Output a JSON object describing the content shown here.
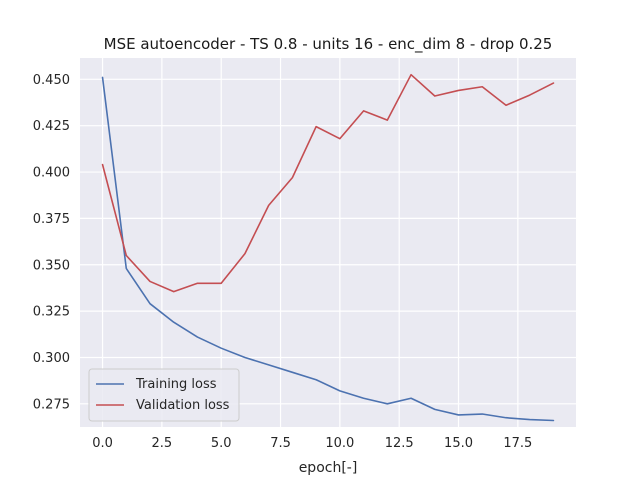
{
  "chart_data": {
    "type": "line",
    "title": "MSE autoencoder - TS 0.8 - units 16 - enc_dim 8 - drop 0.25",
    "xlabel": "epoch[-]",
    "ylabel": "",
    "xlim": [
      -0.95,
      19.95
    ],
    "ylim": [
      0.2625,
      0.4615
    ],
    "xticks": [
      0.0,
      2.5,
      5.0,
      7.5,
      10.0,
      12.5,
      15.0,
      17.5
    ],
    "xtick_labels": [
      "0.0",
      "2.5",
      "5.0",
      "7.5",
      "10.0",
      "12.5",
      "15.0",
      "17.5"
    ],
    "yticks": [
      0.275,
      0.3,
      0.325,
      0.35,
      0.375,
      0.4,
      0.425,
      0.45
    ],
    "ytick_labels": [
      "0.275",
      "0.300",
      "0.325",
      "0.350",
      "0.375",
      "0.400",
      "0.425",
      "0.450"
    ],
    "grid": true,
    "legend_position": "lower-left",
    "x": [
      0,
      1,
      2,
      3,
      4,
      5,
      6,
      7,
      8,
      9,
      10,
      11,
      12,
      13,
      14,
      15,
      16,
      17,
      18,
      19
    ],
    "series": [
      {
        "name": "Training loss",
        "color": "#4c72b0",
        "values": [
          0.451,
          0.348,
          0.329,
          0.319,
          0.311,
          0.305,
          0.3,
          0.296,
          0.292,
          0.288,
          0.282,
          0.278,
          0.275,
          0.278,
          0.272,
          0.269,
          0.2695,
          0.2675,
          0.2665,
          0.266
        ]
      },
      {
        "name": "Validation loss",
        "color": "#c44e52",
        "values": [
          0.404,
          0.355,
          0.341,
          0.3355,
          0.34,
          0.34,
          0.356,
          0.382,
          0.397,
          0.4245,
          0.418,
          0.433,
          0.428,
          0.4525,
          0.441,
          0.444,
          0.446,
          0.436,
          0.4415,
          0.448
        ]
      }
    ],
    "colors": {
      "plot_background": "#eaeaf2",
      "gridline": "#ffffff"
    }
  }
}
